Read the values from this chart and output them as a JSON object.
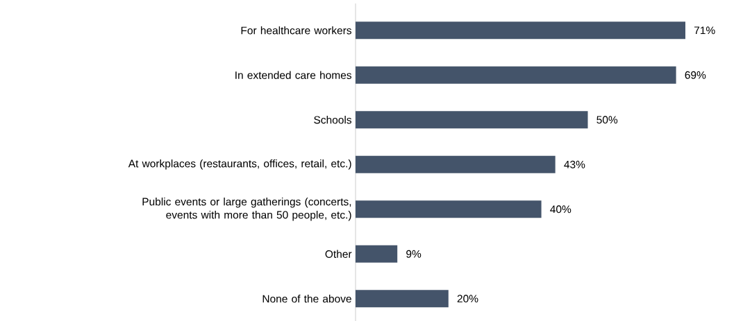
{
  "chart_data": {
    "type": "bar",
    "orientation": "horizontal",
    "categories": [
      "For healthcare workers",
      "In extended care homes",
      "Schools",
      "At workplaces (restaurants, offices, retail, etc.)",
      "Public events or large gatherings (concerts, events with more than 50 people, etc.)",
      "Other",
      "None of the above"
    ],
    "values": [
      71,
      69,
      50,
      43,
      40,
      9,
      20
    ],
    "value_labels": [
      "71%",
      "69%",
      "50%",
      "43%",
      "40%",
      "9%",
      "20%"
    ],
    "color": "#44546a"
  }
}
